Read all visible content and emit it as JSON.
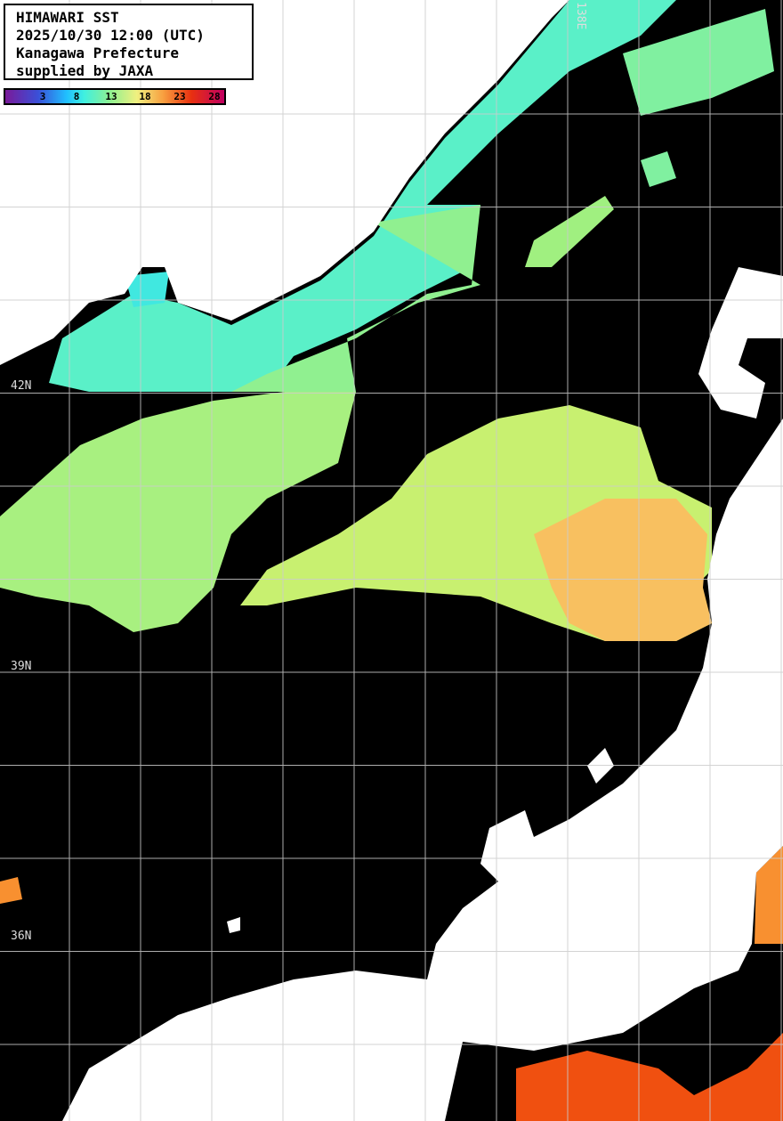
{
  "title_box": {
    "lines": [
      "HIMAWARI SST",
      "2025/10/30 12:00 (UTC)",
      "Kanagawa Prefecture",
      "supplied by JAXA"
    ]
  },
  "colorbar": {
    "ticks": [
      "3",
      "8",
      "13",
      "18",
      "23",
      "28"
    ],
    "colors": [
      "#7a1a9a",
      "#3a50d8",
      "#20c0ff",
      "#40f0e0",
      "#90f090",
      "#f0f080",
      "#f8a040",
      "#e83010",
      "#c00060"
    ]
  },
  "grid": {
    "lat_labels": [
      "42N",
      "39N",
      "36N"
    ],
    "lon_labels": [
      "138E"
    ]
  },
  "colors": {
    "land": "#ffffff",
    "no_data": "#000000",
    "sst_cold": "#40f0e0",
    "sst_mild": "#90f090",
    "sst_warm": "#c8f070",
    "sst_hot": "#f8b050",
    "sst_very_hot": "#f86020"
  }
}
